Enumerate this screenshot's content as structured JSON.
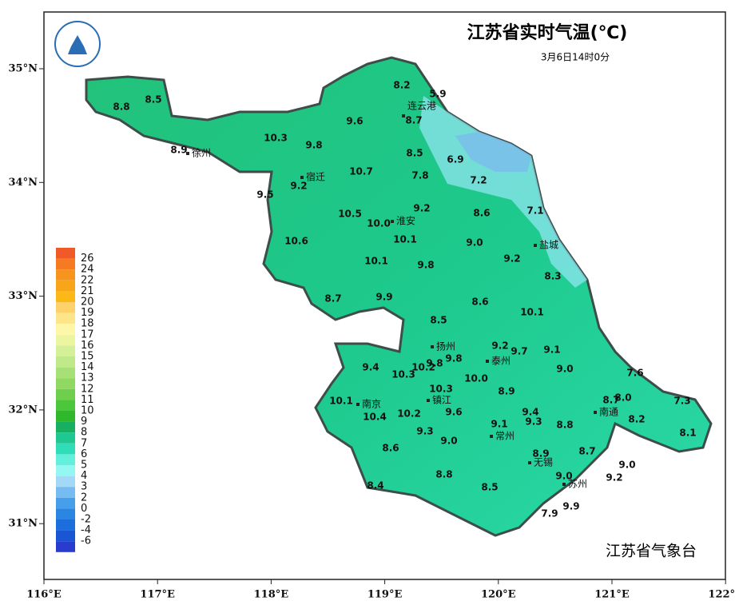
{
  "header": {
    "title": "江苏省实时气温(℃)",
    "subtitle": "3月6日14时0分"
  },
  "footer": "江苏省气象台",
  "axes": {
    "lon_ticks": [
      {
        "value": 116,
        "label": "116°E"
      },
      {
        "value": 117,
        "label": "117°E"
      },
      {
        "value": 118,
        "label": "118°E"
      },
      {
        "value": 119,
        "label": "119°E"
      },
      {
        "value": 120,
        "label": "120°E"
      },
      {
        "value": 121,
        "label": "121°E"
      },
      {
        "value": 122,
        "label": "122°E"
      }
    ],
    "lat_ticks": [
      {
        "value": 35,
        "label": "35°N"
      },
      {
        "value": 34,
        "label": "34°N"
      },
      {
        "value": 33,
        "label": "33°N"
      },
      {
        "value": 32,
        "label": "32°N"
      },
      {
        "value": 31,
        "label": "31°N"
      }
    ]
  },
  "legend": {
    "labels": [
      "26",
      "24",
      "22",
      "21",
      "20",
      "19",
      "18",
      "17",
      "16",
      "15",
      "14",
      "13",
      "12",
      "11",
      "10",
      "9",
      "8",
      "7",
      "6",
      "5",
      "4",
      "3",
      "2",
      "0",
      "-2",
      "-4",
      "-6"
    ],
    "colors": [
      "#f05a28",
      "#f57a22",
      "#f7941d",
      "#f9a51a",
      "#fcb816",
      "#fdd26a",
      "#fde68a",
      "#fff7a8",
      "#ecf5a0",
      "#d6f09a",
      "#bfe98a",
      "#a6e077",
      "#8fd862",
      "#6ecf4c",
      "#4cc63a",
      "#2fb82b",
      "#17b060",
      "#1ec890",
      "#2fddb8",
      "#62f0dc",
      "#95f7f2",
      "#a4d8f7",
      "#74bcf2",
      "#459fea",
      "#2b86e2",
      "#1d6ddc",
      "#1a56d3",
      "#2a3ccf"
    ]
  },
  "cities": [
    "连云港",
    "徐州",
    "宿迁",
    "淮安",
    "盐城",
    "扬州",
    "泰州",
    "镇江",
    "南京",
    "南通",
    "常州",
    "无锡",
    "苏州"
  ],
  "stations": [
    "8.2",
    "5.9",
    "8.8",
    "8.5",
    "8.7",
    "9.6",
    "10.3",
    "9.8",
    "8.9",
    "8.5",
    "6.9",
    "10.7",
    "7.8",
    "7.2",
    "9.2",
    "9.5",
    "9.2",
    "8.6",
    "7.1",
    "10.5",
    "10.0",
    "10.1",
    "9.0",
    "10.6",
    "10.1",
    "9.8",
    "9.2",
    "8.3",
    "8.7",
    "9.9",
    "8.6",
    "10.1",
    "8.5",
    "9.2",
    "9.7",
    "9.1",
    "9.4",
    "9.8",
    "9.8",
    "10.2",
    "10.3",
    "9.0",
    "7.6",
    "10.0",
    "10.3",
    "8.9",
    "10.1",
    "8.7",
    "8.0",
    "7.3",
    "9.6",
    "9.4",
    "10.4",
    "10.2",
    "9.3",
    "8.2",
    "9.1",
    "8.8",
    "9.3",
    "8.1",
    "9.0",
    "8.6",
    "8.9",
    "8.7",
    "9.0",
    "8.8",
    "9.0",
    "9.2",
    "8.4",
    "8.5",
    "9.9",
    "7.9"
  ]
}
